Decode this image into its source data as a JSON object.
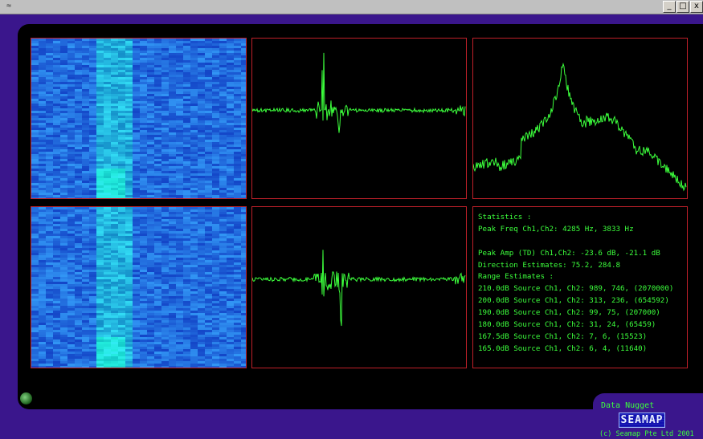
{
  "window": {
    "buttons": {
      "minimize": "_",
      "maximize": "□",
      "close": "x"
    }
  },
  "colors": {
    "trace": "#3cff3c",
    "border": "#c0202a",
    "spectrogram_base": "#1f4fd8",
    "spectrogram_hot": "#2ec8ff",
    "background": "#000000",
    "frame": "#3a168c"
  },
  "icons": {
    "app": "app-icon",
    "status_led": "status-led-icon"
  },
  "statistics": {
    "heading": "Statistics :",
    "peak_freq": "Peak Freq Ch1,Ch2: 4285 Hz, 3833 Hz",
    "blank": "",
    "peak_amp": "Peak Amp (TD) Ch1,Ch2: -23.6 dB, -21.1 dB",
    "direction": "Direction Estimates: 75.2, 284.8",
    "range_heading": "Range Estimates :",
    "ranges": [
      "210.0dB Source Ch1, Ch2: 989, 746, (2070000)",
      "200.0dB Source Ch1, Ch2: 313, 236, (654592)",
      "190.0dB Source Ch1, Ch2: 99, 75, (207000)",
      "180.0dB Source Ch1, Ch2: 31, 24, (65459)",
      "167.5dB Source Ch1, Ch2: 7, 6, (15523)",
      "165.0dB Source Ch1, Ch2: 6, 4, (11640)"
    ]
  },
  "brand": {
    "product": "Data Nugget",
    "logo": "SEAMAP",
    "copyright": "(c) Seamap Pte Ltd 2001"
  }
}
